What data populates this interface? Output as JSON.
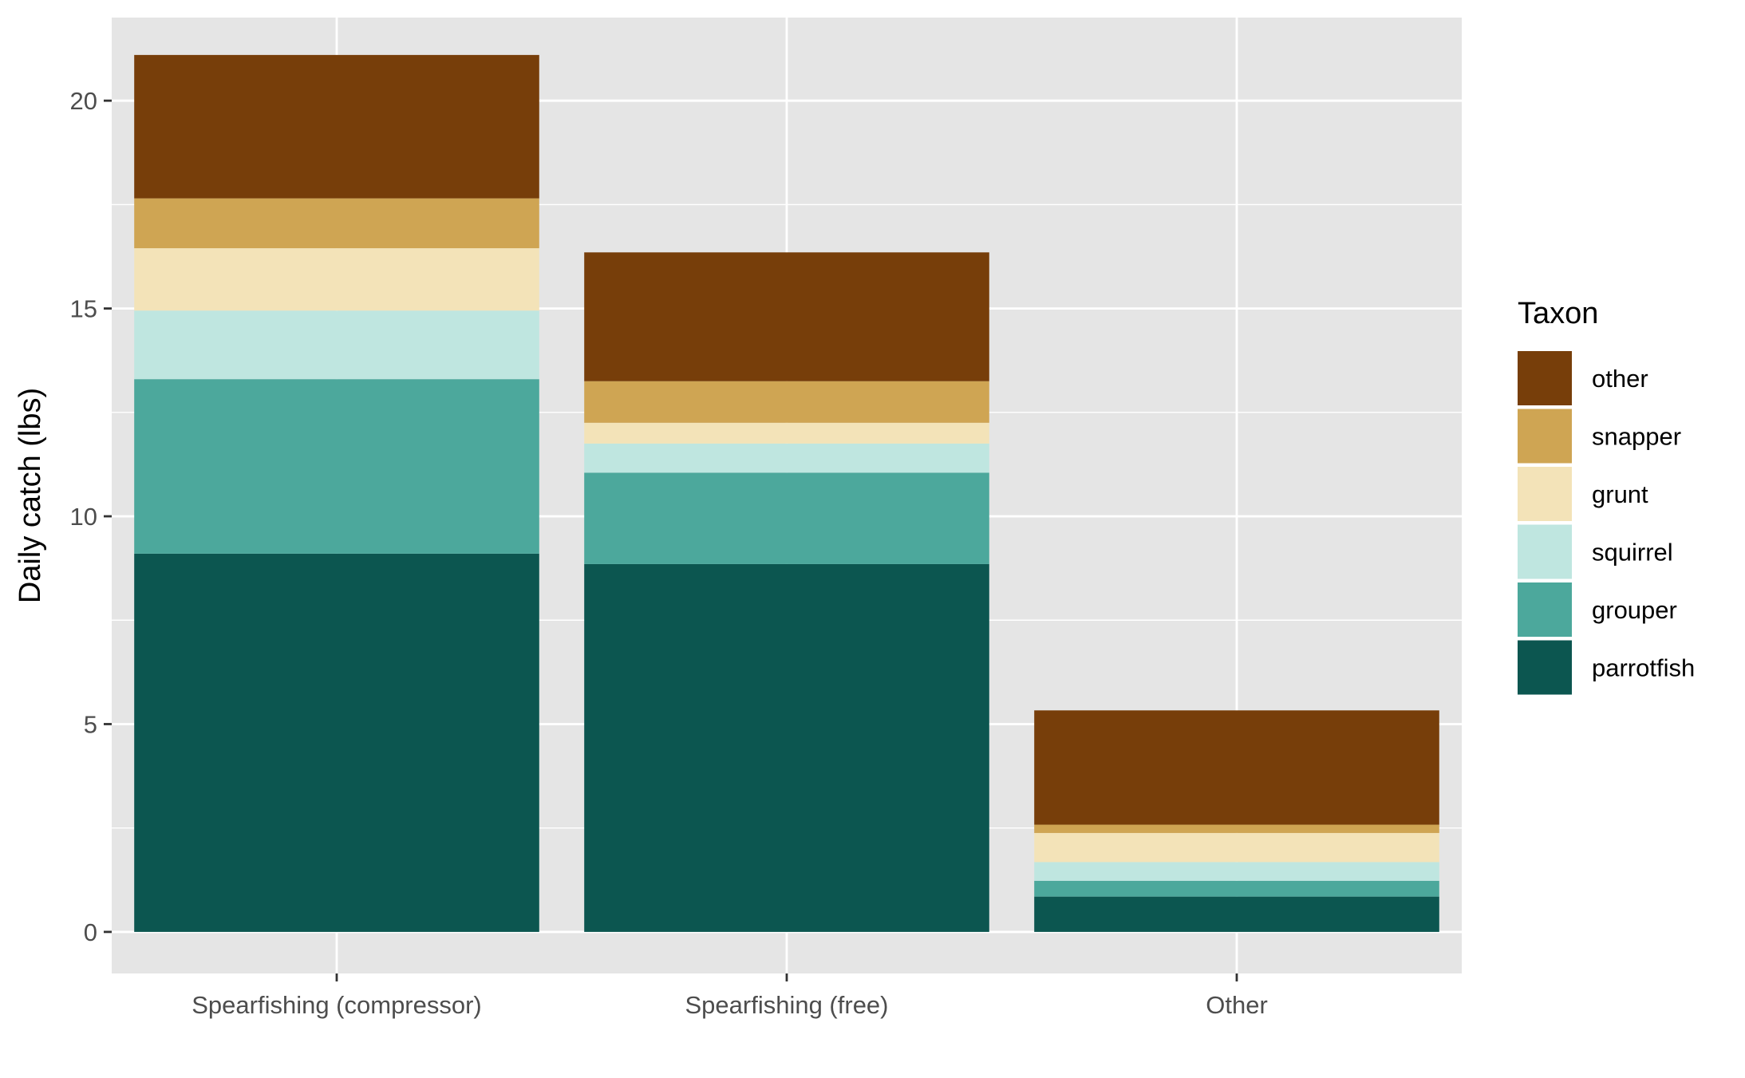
{
  "chart_data": {
    "type": "bar",
    "stacked": true,
    "title": "",
    "xlabel": "",
    "ylabel": "Daily catch (lbs)",
    "categories": [
      "Spearfishing (compressor)",
      "Spearfishing (free)",
      "Other"
    ],
    "ylim": [
      -1,
      22
    ],
    "y_ticks": [
      0,
      5,
      10,
      15,
      20
    ],
    "y_minor_ticks": [
      2.5,
      7.5,
      12.5,
      17.5
    ],
    "grid": true,
    "legend": {
      "title": "Taxon",
      "position": "right"
    },
    "series": [
      {
        "name": "parrotfish",
        "color": "#0c5650",
        "values": [
          9.1,
          8.85,
          0.85
        ]
      },
      {
        "name": "grouper",
        "color": "#4ca89c",
        "values": [
          4.2,
          2.2,
          0.38
        ]
      },
      {
        "name": "squirrel",
        "color": "#bfe6e0",
        "values": [
          1.65,
          0.7,
          0.45
        ]
      },
      {
        "name": "grunt",
        "color": "#f3e3b8",
        "values": [
          1.5,
          0.5,
          0.7
        ]
      },
      {
        "name": "snapper",
        "color": "#cfa553",
        "values": [
          1.2,
          1.0,
          0.2
        ]
      },
      {
        "name": "other",
        "color": "#773e0a",
        "values": [
          3.45,
          3.1,
          2.75
        ]
      }
    ],
    "legend_order": [
      "other",
      "snapper",
      "grunt",
      "squirrel",
      "grouper",
      "parrotfish"
    ],
    "colors": {
      "panel": "#e5e5e5",
      "grid": "#ffffff",
      "axis_text": "#4d4d4d",
      "title_text": "#000000"
    }
  }
}
